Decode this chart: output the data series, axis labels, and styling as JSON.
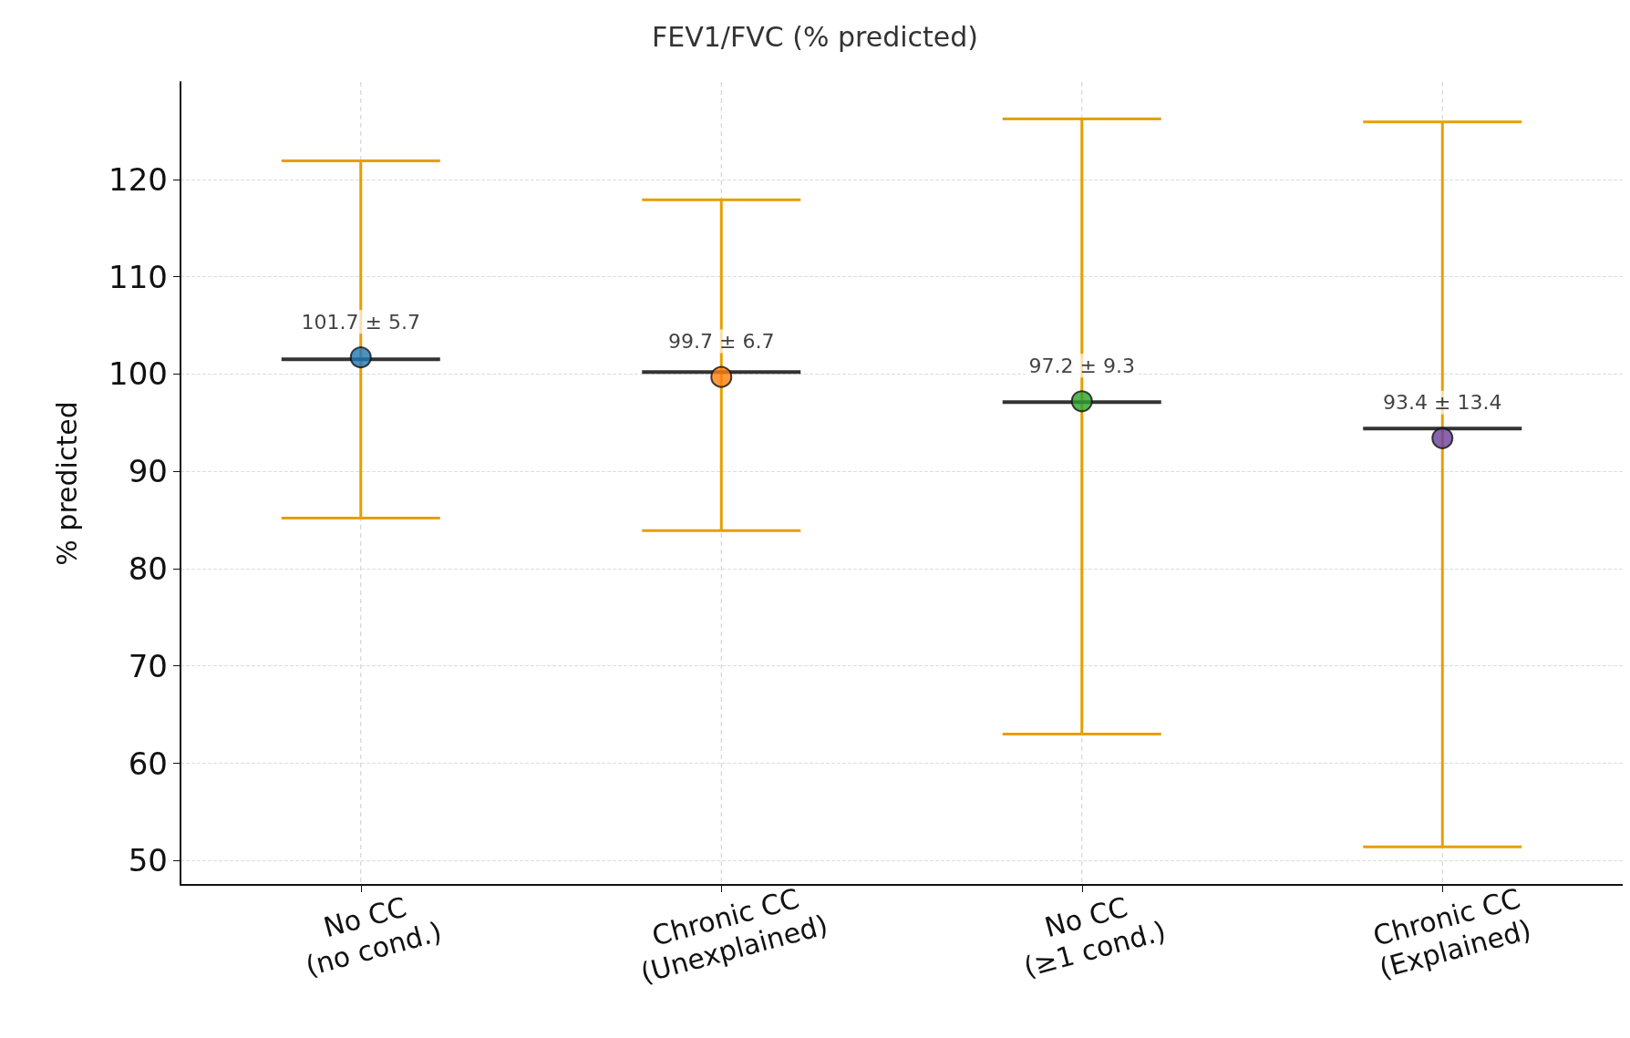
{
  "chart_data": {
    "type": "box",
    "title": "FEV1/FVC (% predicted)",
    "ylabel": "% predicted",
    "categories": [
      "No CC\n(no cond.)",
      "Chronic CC\n(Unexplained)",
      "No CC\n(≥1 cond.)",
      "Chronic CC\n(Explained)"
    ],
    "boxes": [
      {
        "low": 85.2,
        "q1": 101.5,
        "median": 101.5,
        "q3": 101.5,
        "high": 121.9
      },
      {
        "low": 83.9,
        "q1": 100.2,
        "median": 100.2,
        "q3": 100.2,
        "high": 117.9
      },
      {
        "low": 63.0,
        "q1": 97.1,
        "median": 97.1,
        "q3": 97.1,
        "high": 126.2
      },
      {
        "low": 51.4,
        "q1": 94.4,
        "median": 94.4,
        "q3": 94.4,
        "high": 125.9
      }
    ],
    "color": "#333333",
    "series": [
      {
        "type": "scatter",
        "x": [
          "No CC\n(no cond.)",
          "Chronic CC\n(Unexplained)",
          "No CC\n(≥1 cond.)",
          "Chronic CC\n(Explained)"
        ],
        "values": [
          101.7,
          99.7,
          97.2,
          93.4
        ],
        "colors": [
          "#1f77b4",
          "#ff7f0e",
          "#2ca02c",
          "#6a3d9a"
        ],
        "value_labels": [
          "101.7 ± 5.7",
          "99.7 ± 6.7",
          "97.2 ± 9.3",
          "93.4 ± 13.4"
        ]
      }
    ],
    "ylim": [
      47.5,
      130
    ],
    "yticks": [
      50,
      60,
      70,
      80,
      90,
      100,
      110,
      120
    ],
    "grid": true
  }
}
